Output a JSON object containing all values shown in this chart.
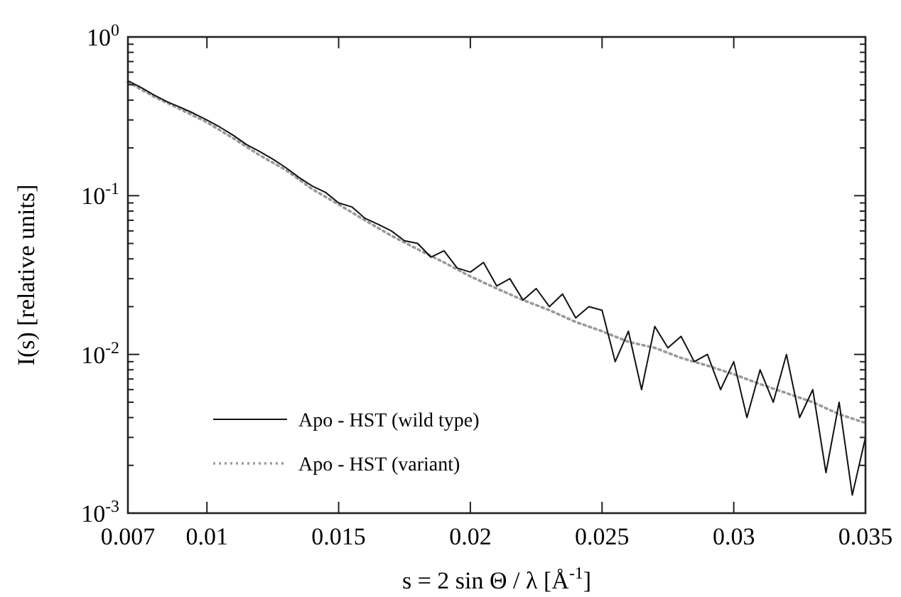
{
  "chart_data": {
    "type": "line",
    "xlabel": "s = 2 sin Θ / λ   [Å$^{-1}$]",
    "ylabel": "I(s)   [relative units]",
    "log": "y",
    "legend": "bottom left",
    "grid": false,
    "xlim": [
      0.007,
      0.035
    ],
    "xticks": [
      0.007,
      0.01,
      0.015,
      0.02,
      0.025,
      0.03,
      0.035
    ],
    "ylim": [
      0.001,
      1
    ],
    "yticks": [
      {
        "value": 0.001,
        "label": "10$^{-3}$"
      },
      {
        "value": 0.002,
        "label": null
      },
      {
        "value": 0.003,
        "label": null
      },
      {
        "value": 0.004,
        "label": null
      },
      {
        "value": 0.005,
        "label": null
      },
      {
        "value": 0.006,
        "label": null
      },
      {
        "value": 0.007,
        "label": null
      },
      {
        "value": 0.008,
        "label": null
      },
      {
        "value": 0.009,
        "label": null
      },
      {
        "value": 0.01,
        "label": "10$^{-2}$"
      },
      {
        "value": 0.02,
        "label": null
      },
      {
        "value": 0.03,
        "label": null
      },
      {
        "value": 0.04,
        "label": null
      },
      {
        "value": 0.05,
        "label": null
      },
      {
        "value": 0.06,
        "label": null
      },
      {
        "value": 0.07,
        "label": null
      },
      {
        "value": 0.08,
        "label": null
      },
      {
        "value": 0.09,
        "label": null
      },
      {
        "value": 0.1,
        "label": "10$^{-1}$"
      },
      {
        "value": 0.2,
        "label": null
      },
      {
        "value": 0.3,
        "label": null
      },
      {
        "value": 0.4,
        "label": null
      },
      {
        "value": 0.5,
        "label": null
      },
      {
        "value": 0.6,
        "label": null
      },
      {
        "value": 0.7,
        "label": null
      },
      {
        "value": 0.8,
        "label": null
      },
      {
        "value": 0.9,
        "label": null
      },
      {
        "value": 1,
        "label": "10$^{0}$"
      }
    ],
    "series": [
      {
        "name": "Apo - HST (variant)",
        "color": "#9a9a9a",
        "line_style": "dotted",
        "x": [
          0.007,
          0.008,
          0.009,
          0.01,
          0.011,
          0.012,
          0.013,
          0.014,
          0.015,
          0.016,
          0.017,
          0.018,
          0.019,
          0.02,
          0.021,
          0.022,
          0.023,
          0.024,
          0.025,
          0.026,
          0.027,
          0.028,
          0.029,
          0.03,
          0.031,
          0.032,
          0.033,
          0.034,
          0.035
        ],
        "values": [
          0.52,
          0.42,
          0.35,
          0.29,
          0.23,
          0.18,
          0.145,
          0.11,
          0.088,
          0.07,
          0.056,
          0.046,
          0.038,
          0.031,
          0.026,
          0.022,
          0.019,
          0.016,
          0.014,
          0.012,
          0.011,
          0.0095,
          0.0085,
          0.0075,
          0.0065,
          0.0057,
          0.005,
          0.0042,
          0.0037
        ]
      },
      {
        "name": "Apo - HST (wild type)",
        "color": "#111111",
        "line_style": "solid",
        "x": [
          0.007,
          0.0075,
          0.008,
          0.0085,
          0.009,
          0.0095,
          0.01,
          0.0105,
          0.011,
          0.0115,
          0.012,
          0.0125,
          0.013,
          0.0135,
          0.014,
          0.0145,
          0.015,
          0.0155,
          0.016,
          0.0165,
          0.017,
          0.0175,
          0.018,
          0.0185,
          0.019,
          0.0195,
          0.02,
          0.0205,
          0.021,
          0.0215,
          0.022,
          0.0225,
          0.023,
          0.0235,
          0.024,
          0.0245,
          0.025,
          0.0255,
          0.026,
          0.0265,
          0.027,
          0.0275,
          0.028,
          0.0285,
          0.029,
          0.0295,
          0.03,
          0.0305,
          0.031,
          0.0315,
          0.032,
          0.0325,
          0.033,
          0.0335,
          0.034,
          0.0345,
          0.035
        ],
        "values": [
          0.53,
          0.48,
          0.43,
          0.39,
          0.36,
          0.33,
          0.3,
          0.27,
          0.24,
          0.21,
          0.19,
          0.17,
          0.15,
          0.13,
          0.115,
          0.105,
          0.09,
          0.085,
          0.072,
          0.066,
          0.06,
          0.052,
          0.05,
          0.041,
          0.045,
          0.035,
          0.033,
          0.038,
          0.027,
          0.03,
          0.022,
          0.026,
          0.02,
          0.024,
          0.017,
          0.02,
          0.019,
          0.009,
          0.014,
          0.006,
          0.015,
          0.011,
          0.013,
          0.009,
          0.01,
          0.006,
          0.009,
          0.004,
          0.008,
          0.005,
          0.01,
          0.004,
          0.006,
          0.0018,
          0.005,
          0.0013,
          0.003
        ]
      }
    ]
  }
}
